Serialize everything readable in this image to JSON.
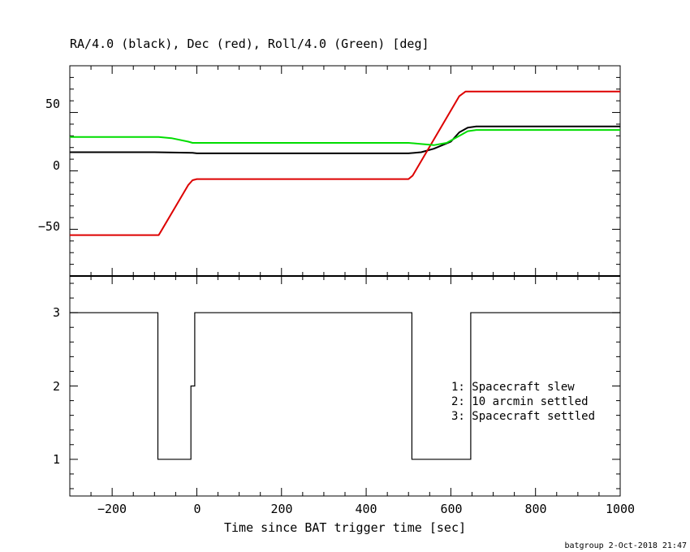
{
  "chart_data": [
    {
      "type": "line",
      "title": "RA/4.0 (black), Dec (red), Roll/4.0 (Green) [deg]",
      "xlim": [
        -300,
        1000
      ],
      "ylim": [
        -90,
        90
      ],
      "xlabel": "",
      "ylabel": "",
      "grid": false,
      "yticks": [
        -50,
        0,
        50
      ],
      "series": [
        {
          "name": "RA/4.0",
          "color": "#000000",
          "x": [
            -300,
            -100,
            -10,
            0,
            500,
            530,
            560,
            600,
            620,
            640,
            660,
            1000
          ],
          "y": [
            16,
            16,
            15.5,
            15,
            15,
            16,
            19,
            25,
            33,
            37,
            38,
            38
          ]
        },
        {
          "name": "Dec",
          "color": "#dd0000",
          "x": [
            -300,
            -90,
            -85,
            -20,
            -10,
            0,
            500,
            510,
            620,
            635,
            660,
            1000
          ],
          "y": [
            -55,
            -55,
            -52,
            -12,
            -8,
            -7,
            -7,
            -4,
            64,
            68,
            68,
            68
          ]
        },
        {
          "name": "Roll/4.0",
          "color": "#00dd00",
          "x": [
            -300,
            -90,
            -60,
            -20,
            -10,
            500,
            530,
            560,
            590,
            640,
            660,
            1000
          ],
          "y": [
            29,
            29,
            28,
            25,
            24,
            24,
            23,
            22,
            24,
            34,
            35,
            35
          ]
        }
      ]
    },
    {
      "type": "line",
      "step": true,
      "xlim": [
        -300,
        1000
      ],
      "ylim": [
        0.5,
        3.5
      ],
      "xlabel": "Time since BAT trigger time [sec]",
      "ylabel": "",
      "yticks": [
        1,
        2,
        3
      ],
      "xticks": [
        -200,
        0,
        200,
        400,
        600,
        800,
        1000
      ],
      "series": [
        {
          "color": "#000000",
          "x": [
            -300,
            -92,
            -92,
            -14,
            -14,
            -5,
            -5,
            508,
            508,
            647,
            647,
            1000
          ],
          "y": [
            3,
            3,
            1,
            1,
            2,
            2,
            3,
            3,
            1,
            1,
            3,
            3
          ]
        }
      ],
      "annotations": [
        "1: Spacecraft slew",
        "2: 10 arcmin settled",
        "3: Spacecraft settled"
      ]
    }
  ],
  "xtick_labels": [
    "−200",
    "0",
    "200",
    "400",
    "600",
    "800",
    "1000"
  ],
  "ytick_labels_top": [
    "−50",
    "0",
    "50"
  ],
  "ytick_labels_bottom": [
    "1",
    "2",
    "3"
  ],
  "footer": "batgroup  2-Oct-2018 21:47"
}
